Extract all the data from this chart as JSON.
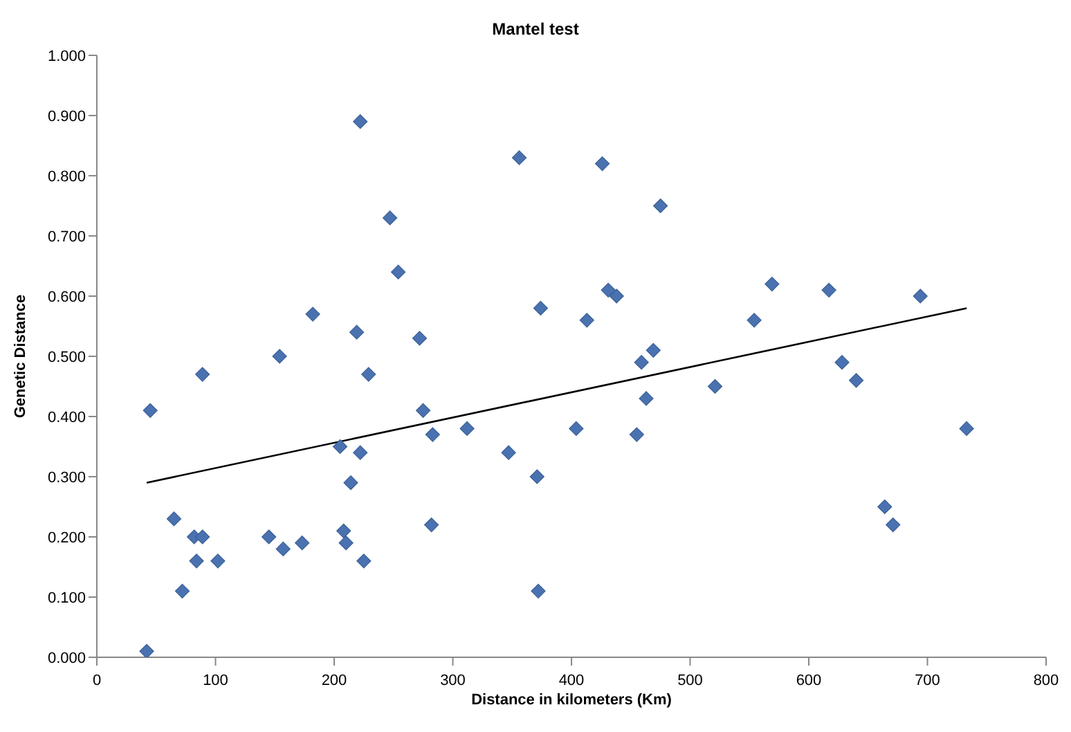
{
  "chart_data": {
    "type": "scatter",
    "title": "Mantel test",
    "xlabel": "Distance in kilometers (Km)",
    "ylabel": "Genetic Distance",
    "xlim": [
      0,
      800
    ],
    "xticks": [
      0,
      100,
      200,
      300,
      400,
      500,
      600,
      700,
      800
    ],
    "ylim": [
      0,
      1
    ],
    "yticks": [
      {
        "value": 0,
        "label": "0.000"
      },
      {
        "value": 0.1,
        "label": "0.100"
      },
      {
        "value": 0.2,
        "label": "0.200"
      },
      {
        "value": 0.3,
        "label": "0.300"
      },
      {
        "value": 0.4,
        "label": "0.400"
      },
      {
        "value": 0.5,
        "label": "0.500"
      },
      {
        "value": 0.6,
        "label": "0.600"
      },
      {
        "value": 0.7,
        "label": "0.700"
      },
      {
        "value": 0.8,
        "label": "0.800"
      },
      {
        "value": 0.9,
        "label": "0.900"
      },
      {
        "value": 1,
        "label": "1.000"
      }
    ],
    "grid": false,
    "legend": false,
    "marker": "diamond",
    "series": [
      {
        "color": "#4a72b0",
        "x": [
          42,
          45,
          65,
          72,
          82,
          89,
          84,
          89,
          102,
          145,
          157,
          154,
          173,
          182,
          205,
          208,
          210,
          214,
          219,
          222,
          222,
          229,
          225,
          247,
          254,
          272,
          275,
          283,
          282,
          312,
          347,
          356,
          371,
          374,
          372,
          404,
          413,
          426,
          431,
          438,
          455,
          459,
          463,
          469,
          475,
          521,
          554,
          569,
          617,
          628,
          640,
          664,
          671,
          694,
          733
        ],
        "values": [
          0.01,
          0.41,
          0.23,
          0.11,
          0.2,
          0.2,
          0.16,
          0.47,
          0.16,
          0.2,
          0.18,
          0.5,
          0.19,
          0.57,
          0.35,
          0.21,
          0.19,
          0.29,
          0.54,
          0.34,
          0.89,
          0.47,
          0.16,
          0.73,
          0.64,
          0.53,
          0.41,
          0.37,
          0.22,
          0.38,
          0.34,
          0.83,
          0.3,
          0.58,
          0.11,
          0.38,
          0.56,
          0.82,
          0.61,
          0.6,
          0.37,
          0.49,
          0.43,
          0.51,
          0.75,
          0.45,
          0.56,
          0.62,
          0.61,
          0.49,
          0.46,
          0.25,
          0.22,
          0.6,
          0.38
        ]
      },
      {
        "type": "line",
        "color": "#000000",
        "marker": "none",
        "line_style": "solid",
        "x": [
          42,
          733
        ],
        "values": [
          0.29,
          0.58
        ]
      }
    ]
  }
}
